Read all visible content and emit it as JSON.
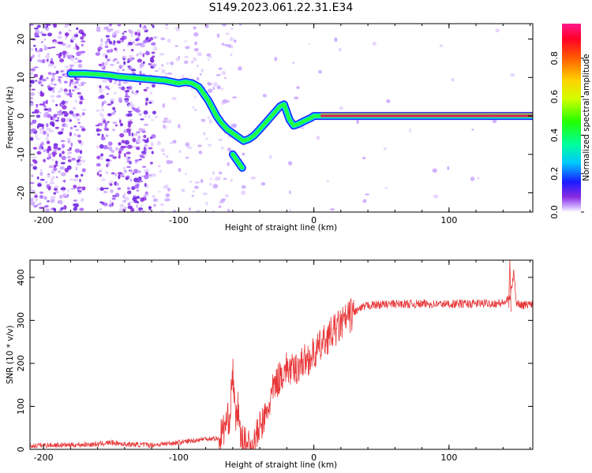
{
  "title": "S149.2023.061.22.31.E34",
  "colors": {
    "snr_line": "#e8383a",
    "ridge_core": "#e8175f",
    "speckle": "#9b30ff"
  },
  "chart_data": [
    {
      "type": "heatmap",
      "xlabel": "Height of straight line (km)",
      "ylabel": "Frequency (Hz)",
      "xlim": [
        -210,
        162
      ],
      "ylim": [
        -25,
        24
      ],
      "xticks": [
        -200,
        -100,
        0,
        100
      ],
      "yticks": [
        20,
        10,
        0,
        -10,
        -20
      ],
      "grid": false,
      "ridge": {
        "x": [
          -180,
          -170,
          -160,
          -150,
          -145,
          -120,
          -110,
          -100,
          -95,
          -90,
          -85,
          -80,
          -78,
          -75,
          -72,
          -68,
          -64,
          -60,
          -56,
          -52,
          -48,
          -44,
          -40,
          -35,
          -30,
          -25,
          -22,
          -20,
          -18,
          -15,
          -12,
          -8,
          -5,
          -2,
          0,
          5,
          20,
          50,
          100,
          162
        ],
        "y": [
          11,
          11,
          10.8,
          10.5,
          10.2,
          9.5,
          9.2,
          8.5,
          8.8,
          8.5,
          7.5,
          5,
          4,
          2,
          0,
          -2,
          -3.5,
          -4.5,
          -5.5,
          -6.5,
          -6,
          -5,
          -3.5,
          -1.5,
          0.5,
          2.5,
          3,
          1,
          -1,
          -2.5,
          -2.2,
          -1.5,
          -1,
          -0.5,
          0,
          0,
          0,
          0,
          0,
          0
        ]
      },
      "branch": {
        "x": [
          -60,
          -56,
          -53
        ],
        "y": [
          -10,
          -12,
          -13.5
        ]
      }
    },
    {
      "type": "line",
      "xlabel": "Height of straight line (km)",
      "ylabel": "SNR (10 * v/v)",
      "xlim": [
        -210,
        162
      ],
      "ylim": [
        0,
        440
      ],
      "xticks": [
        -200,
        -100,
        0,
        100
      ],
      "yticks": [
        0,
        100,
        200,
        300,
        400
      ],
      "grid": false,
      "series": [
        {
          "x": [
            -210,
            -200,
            -180,
            -160,
            -150,
            -140,
            -120,
            -100,
            -90,
            -80,
            -70,
            -62,
            -60,
            -58,
            -56,
            -54,
            -50,
            -45,
            -40,
            -35,
            -30,
            -25,
            -20,
            -15,
            -10,
            -5,
            0,
            10,
            20,
            30,
            40,
            60,
            100,
            140,
            145,
            148,
            150,
            155,
            162
          ],
          "y": [
            8,
            10,
            10,
            12,
            16,
            12,
            10,
            16,
            20,
            25,
            25,
            80,
            190,
            60,
            100,
            20,
            10,
            8,
            50,
            80,
            140,
            170,
            190,
            180,
            200,
            210,
            220,
            260,
            290,
            320,
            335,
            338,
            338,
            340,
            350,
            410,
            340,
            335,
            340
          ]
        }
      ],
      "spike": {
        "x": 145,
        "y": 440
      }
    }
  ],
  "colorbar": {
    "label": "Normalized spectral amplitude",
    "ticks": [
      "0.0",
      "0.2",
      "0.4",
      "0.6",
      "0.8"
    ],
    "range": [
      0,
      0.98
    ]
  }
}
